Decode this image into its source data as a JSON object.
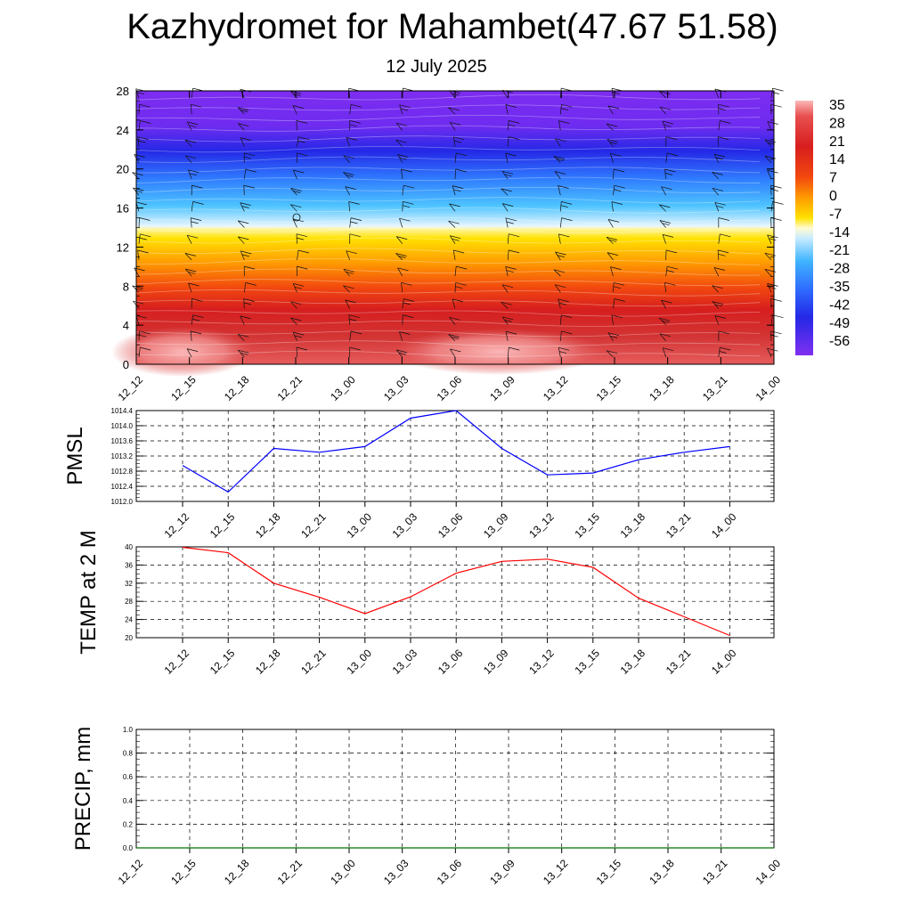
{
  "header": {
    "title": "Kazhydromet for Mahambet(47.67 51.58)",
    "subtitle": "12 July 2025"
  },
  "chart_data": [
    {
      "type": "heatmap",
      "name": "height-time-section",
      "ylim": [
        0,
        28
      ],
      "yticks": [
        "0",
        "4",
        "8",
        "12",
        "16",
        "20",
        "24",
        "28"
      ],
      "x_labels": [
        "12_12",
        "12_15",
        "12_18",
        "12_21",
        "13_00",
        "13_03",
        "13_06",
        "13_09",
        "13_12",
        "13_15",
        "13_18",
        "13_21",
        "14_00"
      ],
      "colorbar_labels": [
        "35",
        "28",
        "21",
        "14",
        "7",
        "0",
        "-7",
        "-14",
        "-21",
        "-28",
        "-35",
        "-42",
        "-49",
        "-56"
      ],
      "colors": {
        "warm_light": "#f9aeb0",
        "red": "#d61e1e",
        "orange": "#ff8a00",
        "yellow": "#ffe800",
        "light_yellow": "#fffccc",
        "cyan": "#2aa4ff",
        "blue": "#1f2ae0",
        "violet": "#7b2cf0"
      }
    },
    {
      "type": "line",
      "ylabel": "PMSL",
      "ylim": [
        1012.0,
        1014.4
      ],
      "yticks": [
        "1012.0",
        "1012.4",
        "1012.8",
        "1013.2",
        "1013.6",
        "1014.0",
        "1014.4"
      ],
      "x": [
        "12_12",
        "12_15",
        "12_18",
        "12_21",
        "13_00",
        "13_03",
        "13_06",
        "13_09",
        "13_12",
        "13_15",
        "13_18",
        "13_21",
        "14_00"
      ],
      "values": [
        1012.95,
        1012.25,
        1013.4,
        1013.3,
        1013.45,
        1014.2,
        1014.4,
        1013.4,
        1012.7,
        1012.75,
        1013.1,
        1013.3,
        1013.45
      ],
      "color": "#0000ff"
    },
    {
      "type": "line",
      "ylabel": "TEMP at 2 M",
      "ylim": [
        20,
        40
      ],
      "yticks": [
        "20",
        "24",
        "28",
        "32",
        "36",
        "40"
      ],
      "x": [
        "12_12",
        "12_15",
        "12_18",
        "12_21",
        "13_00",
        "13_03",
        "13_06",
        "13_09",
        "13_12",
        "13_15",
        "13_18",
        "13_21",
        "14_00"
      ],
      "values": [
        39.9,
        38.7,
        32.0,
        28.9,
        25.3,
        29.0,
        34.2,
        36.8,
        37.3,
        35.5,
        28.7,
        24.6,
        20.5
      ],
      "color": "#ff0000"
    },
    {
      "type": "line",
      "ylabel": "PRECIP, mm",
      "ylim": [
        0.0,
        1.0
      ],
      "yticks": [
        "0.0",
        "0.2",
        "0.4",
        "0.6",
        "0.8",
        "1.0"
      ],
      "x": [
        "12_12",
        "12_15",
        "12_18",
        "12_21",
        "13_00",
        "13_03",
        "13_06",
        "13_09",
        "13_12",
        "13_15",
        "13_18",
        "13_21",
        "14_00"
      ],
      "values": [
        0,
        0,
        0,
        0,
        0,
        0,
        0,
        0,
        0,
        0,
        0,
        0,
        0
      ],
      "color": "#007000"
    }
  ]
}
